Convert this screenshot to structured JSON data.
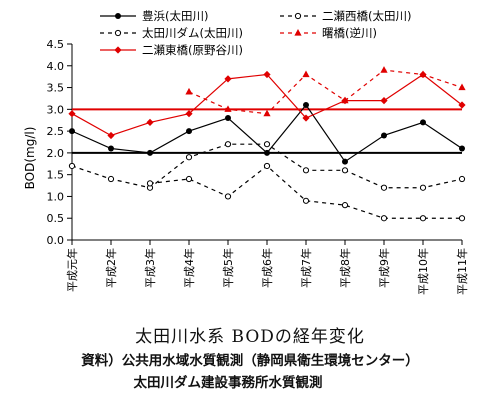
{
  "chart_data": {
    "type": "line",
    "title": "太田川水系 BODの経年変化",
    "ylabel": "BOD(mg/l)",
    "xlabel": "",
    "ylim": [
      0,
      4.5
    ],
    "yticks": [
      "0.0",
      "0.5",
      "1.0",
      "1.5",
      "2.0",
      "2.5",
      "3.0",
      "3.5",
      "4.0",
      "4.5"
    ],
    "categories": [
      "平成元年",
      "平成2年",
      "平成3年",
      "平成4年",
      "平成5年",
      "平成6年",
      "平成7年",
      "平成8年",
      "平成9年",
      "平成10年",
      "平成11年"
    ],
    "grid": false,
    "legend_position": "top",
    "reference_lines": [
      {
        "value": 3.0,
        "color": "#e00000"
      },
      {
        "value": 2.0,
        "color": "#000000"
      }
    ],
    "series": [
      {
        "name": "豊浜(太田川)",
        "style": "solid",
        "marker": "filled-circle",
        "color": "#000000",
        "values": [
          2.5,
          2.1,
          2.0,
          2.5,
          2.8,
          2.0,
          3.1,
          1.8,
          2.4,
          2.7,
          2.1
        ]
      },
      {
        "name": "二瀬西橋(太田川)",
        "style": "dashed",
        "marker": "open-circle",
        "color": "#000000",
        "values": [
          1.7,
          1.4,
          1.2,
          1.9,
          2.2,
          2.2,
          1.6,
          1.6,
          1.2,
          1.2,
          1.4
        ]
      },
      {
        "name": "太田川ダム(太田川)",
        "style": "dashed",
        "marker": "open-circle",
        "color": "#000000",
        "values": [
          null,
          null,
          1.3,
          1.4,
          1.0,
          1.7,
          0.9,
          0.8,
          0.5,
          0.5,
          0.5
        ]
      },
      {
        "name": "曙橋(逆川)",
        "style": "dashed",
        "marker": "filled-triangle",
        "color": "#e00000",
        "values": [
          null,
          null,
          null,
          3.4,
          3.0,
          2.9,
          3.8,
          3.2,
          3.9,
          3.8,
          3.5
        ]
      },
      {
        "name": "二瀬東橋(原野谷川)",
        "style": "solid",
        "marker": "filled-diamond",
        "color": "#e00000",
        "values": [
          2.9,
          2.4,
          2.7,
          2.9,
          3.7,
          3.8,
          2.8,
          3.2,
          3.2,
          3.8,
          3.1
        ]
      }
    ]
  },
  "captions": {
    "title": "太田川水系 BODの経年変化",
    "source1": "資料）公共用水域水質観測（静岡県衛生環境センター）",
    "source2": "太田川ダム建設事務所水質観測"
  }
}
